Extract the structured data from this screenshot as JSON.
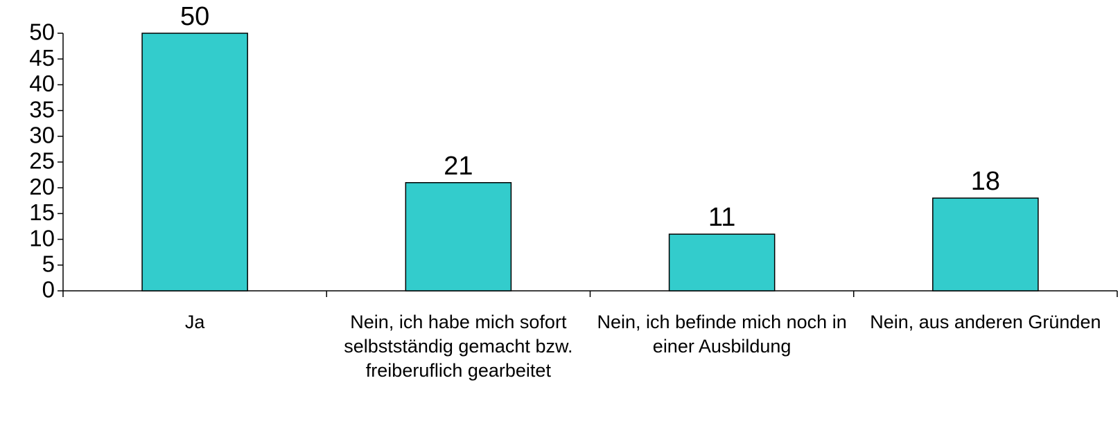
{
  "chart_data": {
    "type": "bar",
    "categories": [
      "Ja",
      "Nein, ich habe mich sofort selbstständig gemacht bzw. freiberuflich gearbeitet",
      "Nein, ich befinde mich noch in einer Ausbildung",
      "Nein, aus anderen Gründen"
    ],
    "values": [
      50,
      21,
      11,
      18
    ],
    "color": "#33cccc",
    "ylim": [
      0,
      50
    ],
    "yticks": [
      0,
      5,
      10,
      15,
      20,
      25,
      30,
      35,
      40,
      45,
      50
    ],
    "grid": false
  }
}
